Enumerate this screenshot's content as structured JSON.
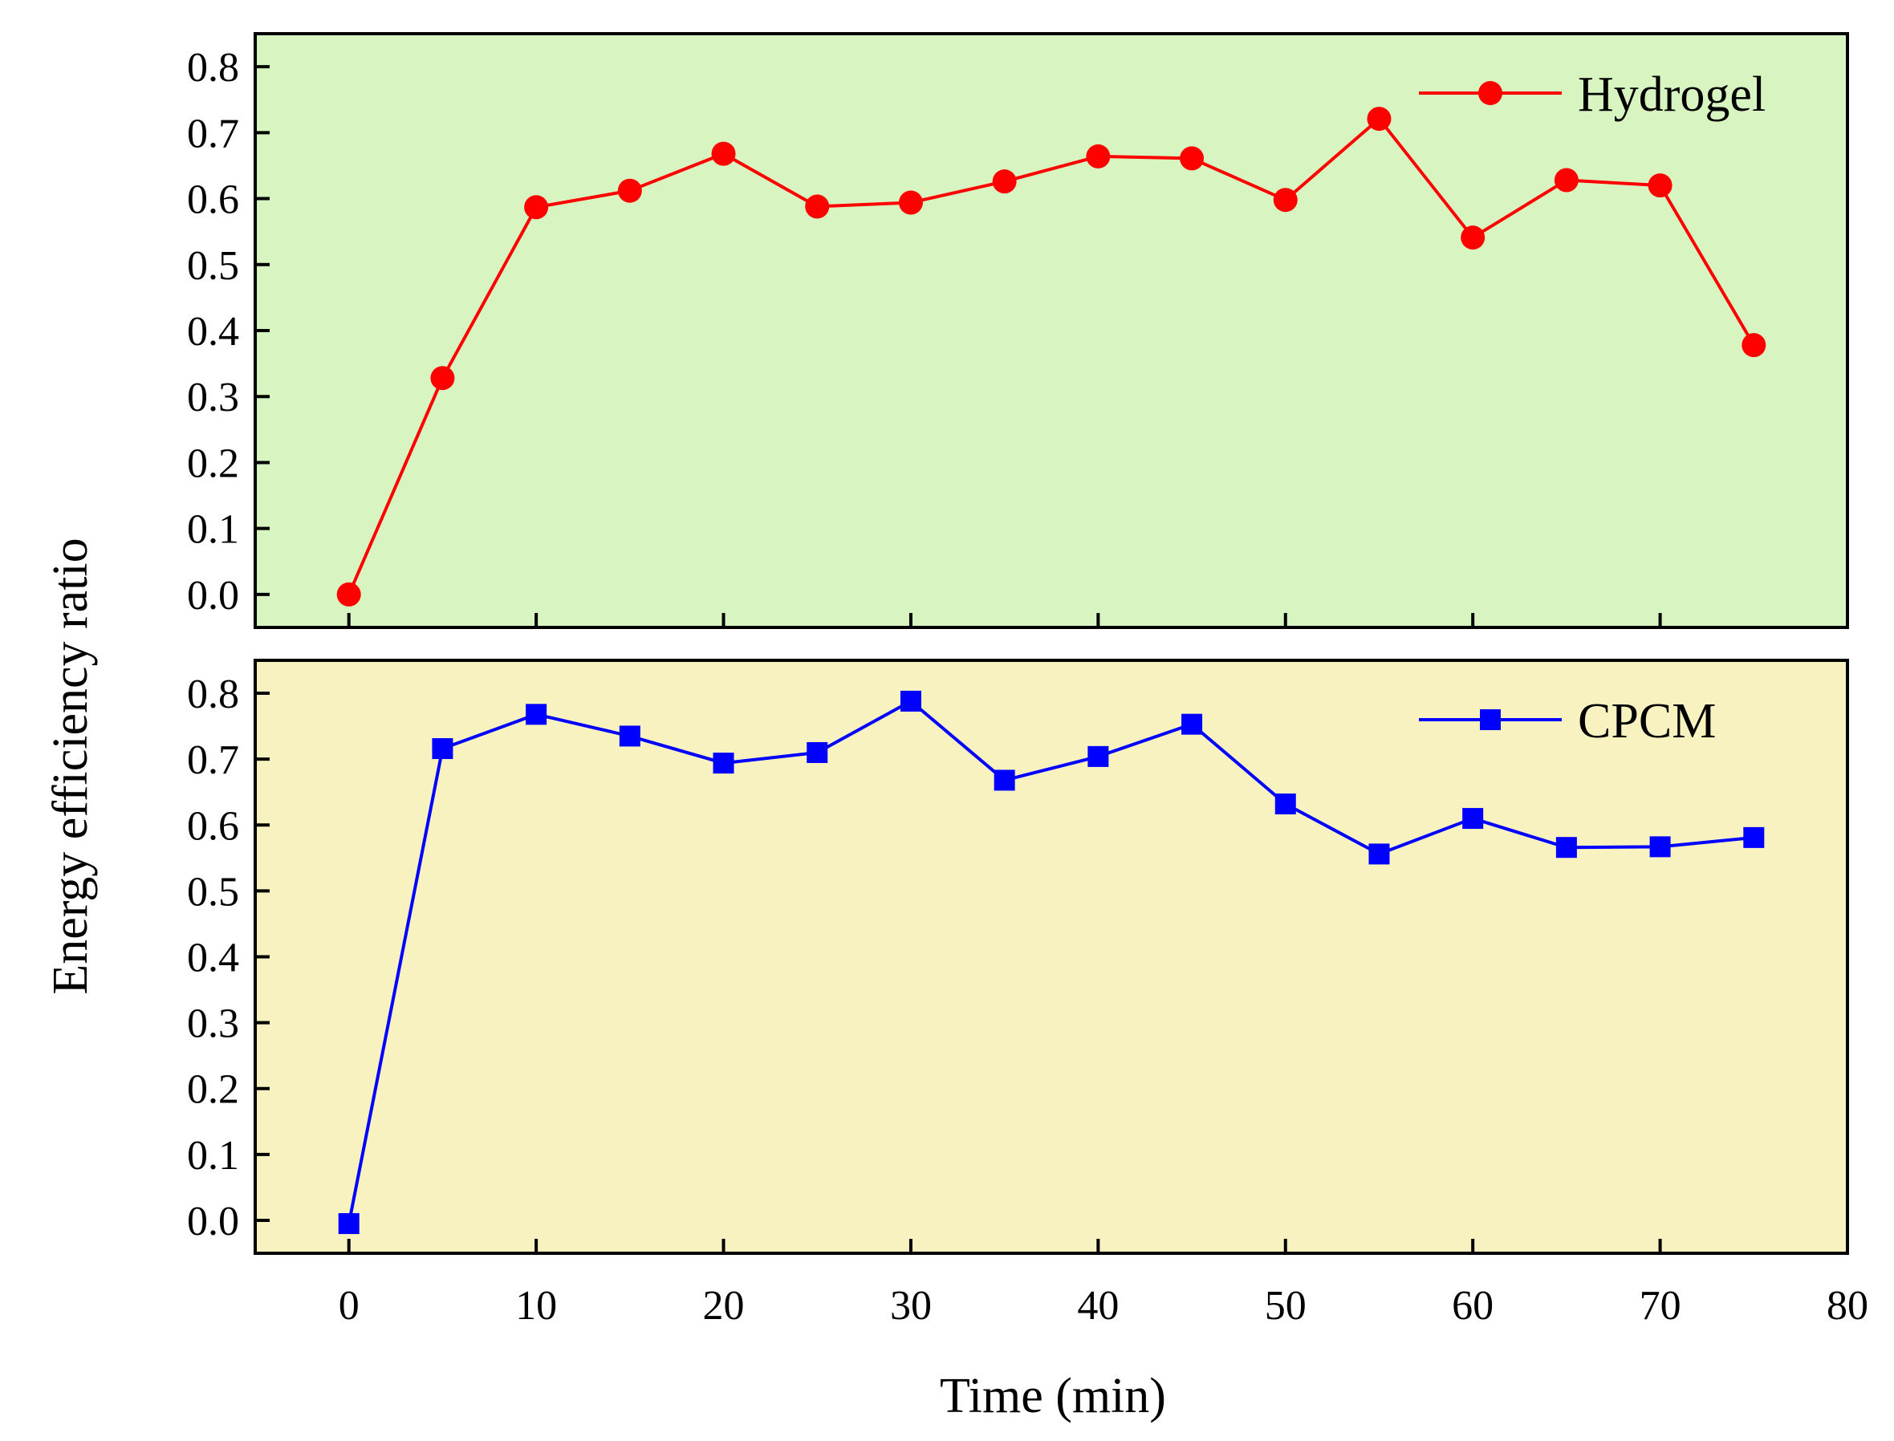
{
  "figure": {
    "xlabel": "Time (min)",
    "ylabel": "Energy efficiency ratio"
  },
  "chart_data": [
    {
      "type": "line",
      "marker": "circle",
      "background": "#d8f5c1",
      "color": "#ff0000",
      "xlim": [
        -5,
        80
      ],
      "ylim": [
        -0.05,
        0.85
      ],
      "xticks": [
        0,
        10,
        20,
        30,
        40,
        50,
        60,
        70,
        80
      ],
      "yticks": [
        0.0,
        0.1,
        0.2,
        0.3,
        0.4,
        0.5,
        0.6,
        0.7,
        0.8
      ],
      "ytick_labels": [
        "0.0",
        "0.1",
        "0.2",
        "0.3",
        "0.4",
        "0.5",
        "0.6",
        "0.7",
        "0.8"
      ],
      "legend_position": "top-right",
      "series": [
        {
          "name": "Hydrogel",
          "x": [
            0,
            5,
            10,
            15,
            20,
            25,
            30,
            35,
            40,
            45,
            50,
            55,
            60,
            65,
            70,
            75
          ],
          "values": [
            0.0,
            0.328,
            0.587,
            0.612,
            0.668,
            0.588,
            0.594,
            0.626,
            0.664,
            0.661,
            0.598,
            0.721,
            0.541,
            0.628,
            0.62,
            0.378
          ]
        }
      ]
    },
    {
      "type": "line",
      "marker": "square",
      "background": "#f7f2bf",
      "color": "#0000ff",
      "xlim": [
        -5,
        80
      ],
      "ylim": [
        -0.05,
        0.85
      ],
      "xticks": [
        0,
        10,
        20,
        30,
        40,
        50,
        60,
        70,
        80
      ],
      "xtick_labels": [
        "0",
        "10",
        "20",
        "30",
        "40",
        "50",
        "60",
        "70",
        "80"
      ],
      "yticks": [
        0.0,
        0.1,
        0.2,
        0.3,
        0.4,
        0.5,
        0.6,
        0.7,
        0.8
      ],
      "ytick_labels": [
        "0.0",
        "0.1",
        "0.2",
        "0.3",
        "0.4",
        "0.5",
        "0.6",
        "0.7",
        "0.8"
      ],
      "legend_position": "top-right",
      "series": [
        {
          "name": "CPCM",
          "x": [
            0,
            5,
            10,
            15,
            20,
            25,
            30,
            35,
            40,
            45,
            50,
            55,
            60,
            65,
            70,
            75
          ],
          "values": [
            -0.005,
            0.716,
            0.768,
            0.735,
            0.694,
            0.71,
            0.788,
            0.668,
            0.704,
            0.753,
            0.632,
            0.556,
            0.61,
            0.566,
            0.567,
            0.581
          ]
        }
      ]
    }
  ]
}
